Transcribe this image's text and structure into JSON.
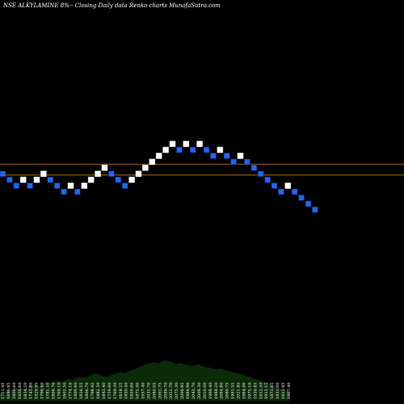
{
  "title": "NSE ALKYLAMINE 8%-- Closing Daily data Renko charts MunafaSutra.com",
  "colors": {
    "background": "#000000",
    "up_brick": "#ffffff",
    "down_brick": "#2266ee",
    "down_brick_border": "#0a1a55",
    "hline": "#a0641e",
    "volume_fill": "#0b2a08"
  },
  "chart_data": {
    "type": "renko",
    "title": "NSE ALKYLAMINE 8%-- Closing Daily data Renko charts MunafaSutra.com",
    "xlabel": "",
    "ylabel": "",
    "grid": false,
    "legend": "none",
    "brick_prices": [
      "1711.45",
      "1696.85",
      "1800.60",
      "1856.60",
      "1834.50",
      "1743.80",
      "1829.95",
      "1796.60",
      "1781.10",
      "1806.70",
      "1769.10",
      "1803.30",
      "1774.10",
      "1800.60",
      "1826.55",
      "1806.70",
      "1798.45",
      "1882.50",
      "1843.40",
      "1759.00",
      "1769.30",
      "1818.25",
      "1830.40",
      "1859.60",
      "1875.40",
      "1957.40",
      "2032.70",
      "2080.05",
      "2092.75",
      "2089.70",
      "2051.70",
      "2075.30",
      "2006.95",
      "1984.90",
      "2043.70",
      "2008.30",
      "2010.00",
      "1998.40",
      "1988.20",
      "2084.80",
      "2089.75",
      "1981.55",
      "2021.85",
      "1984.00",
      "1975.10",
      "1939.85",
      "1912.50",
      "1913.15",
      "1873.65",
      "1831.00",
      "1812.95",
      "1807.40"
    ],
    "bricks": [
      {
        "dir": "down",
        "level": 6
      },
      {
        "dir": "down",
        "level": 5
      },
      {
        "dir": "down",
        "level": 4
      },
      {
        "dir": "up",
        "level": 5
      },
      {
        "dir": "down",
        "level": 4
      },
      {
        "dir": "up",
        "level": 5
      },
      {
        "dir": "up",
        "level": 6
      },
      {
        "dir": "down",
        "level": 5
      },
      {
        "dir": "down",
        "level": 4
      },
      {
        "dir": "down",
        "level": 3
      },
      {
        "dir": "up",
        "level": 4
      },
      {
        "dir": "down",
        "level": 3
      },
      {
        "dir": "up",
        "level": 4
      },
      {
        "dir": "up",
        "level": 5
      },
      {
        "dir": "up",
        "level": 6
      },
      {
        "dir": "up",
        "level": 7
      },
      {
        "dir": "down",
        "level": 6
      },
      {
        "dir": "down",
        "level": 5
      },
      {
        "dir": "down",
        "level": 4
      },
      {
        "dir": "up",
        "level": 5
      },
      {
        "dir": "up",
        "level": 6
      },
      {
        "dir": "up",
        "level": 7
      },
      {
        "dir": "up",
        "level": 8
      },
      {
        "dir": "up",
        "level": 9
      },
      {
        "dir": "up",
        "level": 10
      },
      {
        "dir": "up",
        "level": 11
      },
      {
        "dir": "down",
        "level": 10
      },
      {
        "dir": "up",
        "level": 11
      },
      {
        "dir": "down",
        "level": 10
      },
      {
        "dir": "up",
        "level": 11
      },
      {
        "dir": "down",
        "level": 10
      },
      {
        "dir": "down",
        "level": 9
      },
      {
        "dir": "up",
        "level": 10
      },
      {
        "dir": "down",
        "level": 9
      },
      {
        "dir": "down",
        "level": 8
      },
      {
        "dir": "up",
        "level": 9
      },
      {
        "dir": "down",
        "level": 8
      },
      {
        "dir": "down",
        "level": 7
      },
      {
        "dir": "down",
        "level": 6
      },
      {
        "dir": "down",
        "level": 5
      },
      {
        "dir": "down",
        "level": 4
      },
      {
        "dir": "down",
        "level": 3
      },
      {
        "dir": "up",
        "level": 4
      },
      {
        "dir": "down",
        "level": 3
      },
      {
        "dir": "down",
        "level": 2
      },
      {
        "dir": "down",
        "level": 1
      },
      {
        "dir": "down",
        "level": 0
      }
    ],
    "reference_levels": [
      7.6,
      5.8
    ],
    "volume_profile": [
      8,
      10,
      12,
      14,
      13,
      15,
      18,
      16,
      20,
      19,
      22,
      21,
      24,
      23,
      26,
      25,
      28,
      30,
      27,
      26,
      29,
      31,
      30,
      33,
      35,
      38,
      40,
      42,
      41,
      44,
      43,
      40,
      41,
      39,
      38,
      40,
      37,
      36,
      34,
      35,
      33,
      31,
      30,
      28,
      26,
      24,
      22,
      20,
      17,
      14,
      12,
      10
    ]
  }
}
